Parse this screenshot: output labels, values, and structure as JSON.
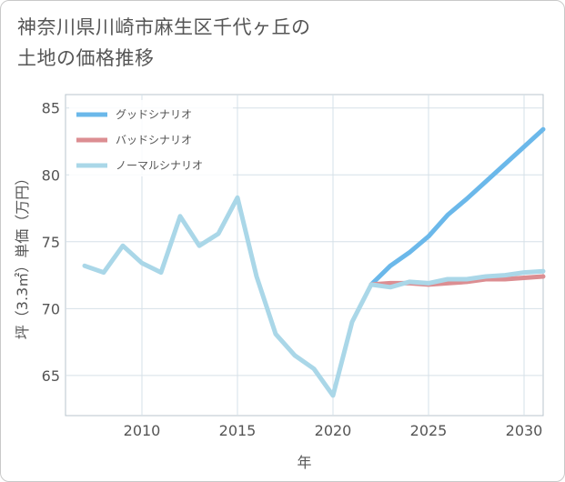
{
  "title": {
    "line1": "神奈川県川崎市麻生区千代ヶ丘の",
    "line2": "土地の価格推移"
  },
  "chart_data": {
    "type": "line",
    "title": "神奈川県川崎市麻生区千代ヶ丘の土地の価格推移",
    "xlabel": "年",
    "ylabel": "坪（3.3㎡）単価（万円）",
    "xlim": [
      2006,
      2031
    ],
    "ylim": [
      62,
      86
    ],
    "x_ticks": [
      2010,
      2015,
      2020,
      2025,
      2030
    ],
    "y_ticks": [
      65,
      70,
      75,
      80,
      85
    ],
    "grid": true,
    "legend_position": "top-left",
    "series": [
      {
        "name": "グッドシナリオ",
        "color": "#6bb8ea",
        "x": [
          2022,
          2023,
          2024,
          2025,
          2026,
          2027,
          2028,
          2029,
          2030,
          2031
        ],
        "values": [
          71.8,
          73.2,
          74.2,
          75.4,
          77.0,
          78.2,
          79.5,
          80.8,
          82.1,
          83.4
        ]
      },
      {
        "name": "バッドシナリオ",
        "color": "#dc8e92",
        "x": [
          2022,
          2023,
          2024,
          2025,
          2026,
          2027,
          2028,
          2029,
          2030,
          2031
        ],
        "values": [
          71.8,
          71.9,
          71.9,
          71.8,
          71.9,
          72.0,
          72.2,
          72.2,
          72.3,
          72.4
        ]
      },
      {
        "name": "ノーマルシナリオ",
        "color": "#aad7e8",
        "x": [
          2007,
          2008,
          2009,
          2010,
          2011,
          2012,
          2013,
          2014,
          2015,
          2016,
          2017,
          2018,
          2019,
          2020,
          2021,
          2022,
          2023,
          2024,
          2025,
          2026,
          2027,
          2028,
          2029,
          2030,
          2031
        ],
        "values": [
          73.2,
          72.7,
          74.7,
          73.4,
          72.7,
          76.9,
          74.7,
          75.6,
          78.3,
          72.4,
          68.1,
          66.5,
          65.5,
          63.5,
          69.0,
          71.8,
          71.6,
          72.0,
          71.9,
          72.2,
          72.2,
          72.4,
          72.5,
          72.7,
          72.8
        ]
      }
    ]
  }
}
